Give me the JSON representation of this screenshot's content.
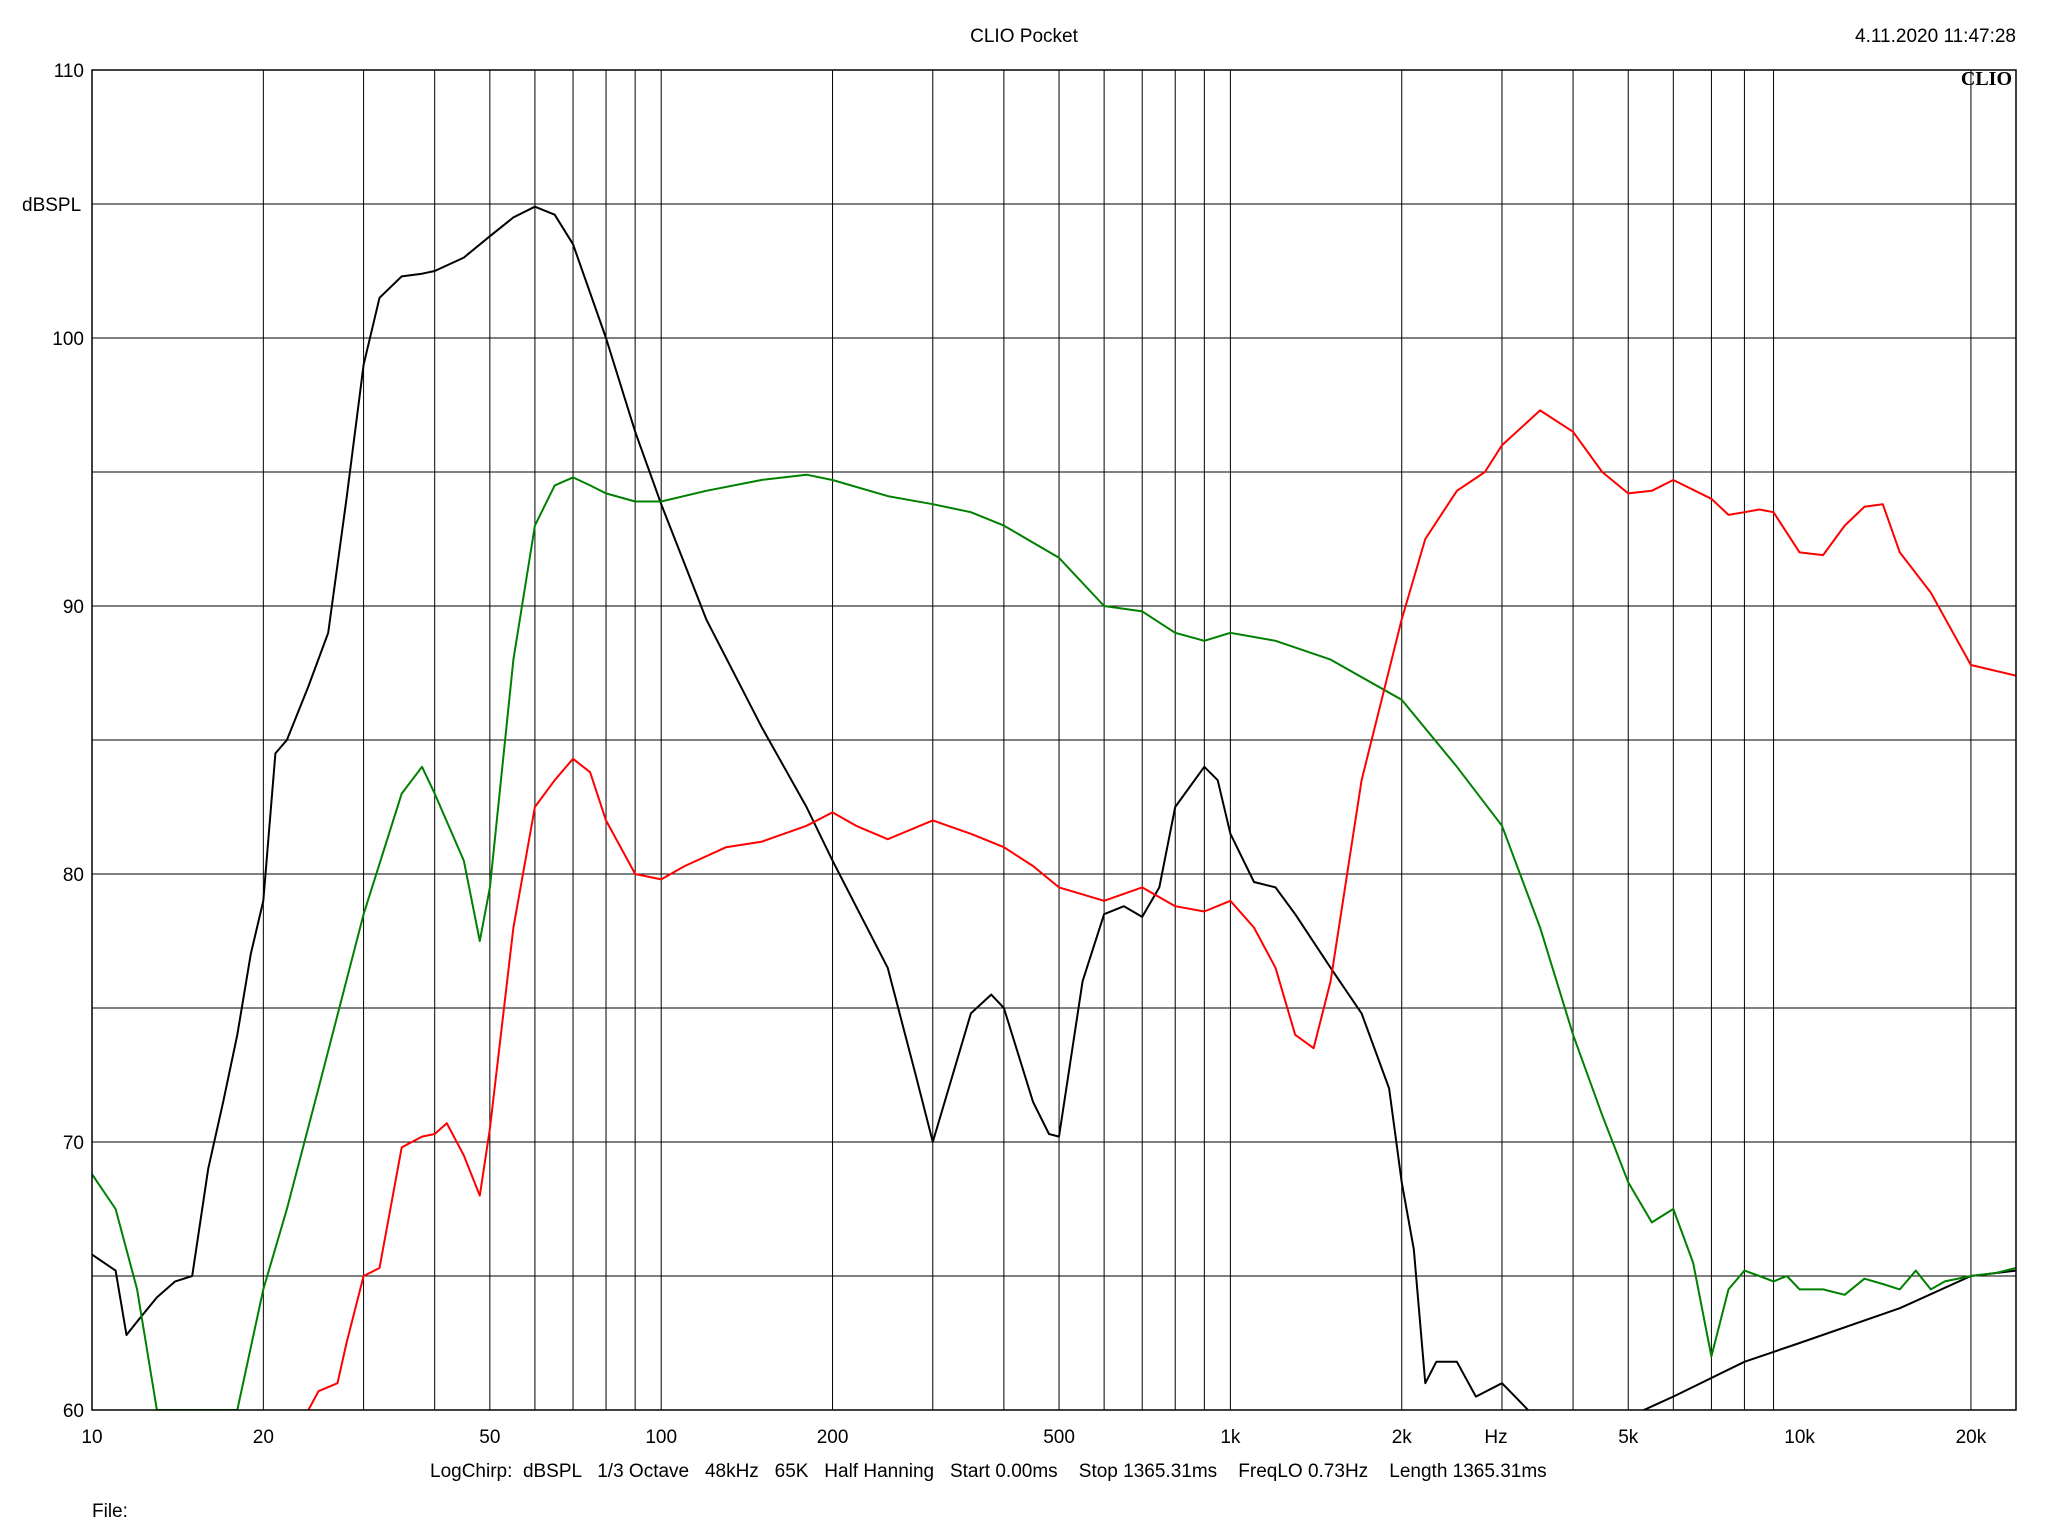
{
  "header": {
    "title": "CLIO Pocket",
    "timestamp": "4.11.2020 11:47:28",
    "logo": "CLIO"
  },
  "footer": {
    "info": "LogChirp:  dBSPL   1/3 Octave   48kHz   65K   Half Hanning   Start 0.00ms    Stop 1365.31ms    FreqLO 0.73Hz    Length 1365.31ms",
    "file_label": "File:"
  },
  "chart_data": {
    "type": "line",
    "title": "CLIO Pocket",
    "xlabel": "Hz",
    "ylabel": "dBSPL",
    "xscale": "log",
    "xlim": [
      10,
      24000
    ],
    "ylim": [
      60,
      110
    ],
    "grid": true,
    "y_ticks": [
      60,
      70,
      80,
      90,
      100,
      110
    ],
    "y_tick_labels": [
      "60",
      "70",
      "80",
      "90",
      "100",
      "110"
    ],
    "x_ticks": [
      10,
      20,
      50,
      100,
      200,
      500,
      1000,
      2000,
      5000,
      10000,
      20000
    ],
    "x_tick_labels": [
      "10",
      "20",
      "50",
      "100",
      "200",
      "500",
      "1k",
      "2k",
      "5k",
      "10k",
      "20k"
    ],
    "series": [
      {
        "color": "#000000",
        "x": [
          10,
          11,
          11.5,
          12,
          13,
          14,
          15,
          16,
          17,
          18,
          19,
          20,
          21,
          22,
          24,
          26,
          28,
          30,
          32,
          35,
          38,
          40,
          45,
          50,
          55,
          60,
          65,
          70,
          80,
          90,
          100,
          120,
          150,
          180,
          200,
          250,
          280,
          300,
          350,
          380,
          400,
          450,
          480,
          500,
          550,
          600,
          650,
          700,
          750,
          800,
          900,
          950,
          1000,
          1100,
          1200,
          1300,
          1500,
          1700,
          1900,
          2000,
          2100,
          2200,
          2300,
          2500,
          2700,
          3000,
          3300,
          3500,
          3800,
          4000,
          4200,
          6000,
          8000,
          10000,
          15000,
          20000,
          24000
        ],
        "y": [
          65.8,
          65.2,
          62.8,
          63.3,
          64.2,
          64.8,
          65.0,
          69.0,
          71.5,
          74.0,
          77.0,
          79.0,
          84.5,
          85.0,
          87.0,
          89.0,
          94.0,
          99.0,
          101.5,
          102.3,
          102.4,
          102.5,
          103.0,
          103.8,
          104.5,
          104.9,
          104.6,
          103.5,
          100.0,
          96.5,
          93.8,
          89.5,
          85.5,
          82.5,
          80.5,
          76.5,
          72.5,
          70.0,
          74.8,
          75.5,
          75.0,
          71.5,
          70.3,
          70.2,
          76.0,
          78.5,
          78.8,
          78.4,
          79.5,
          82.5,
          84.0,
          83.5,
          81.5,
          79.7,
          79.5,
          78.5,
          76.5,
          74.8,
          72.0,
          68.5,
          66.0,
          61.0,
          61.8,
          61.8,
          60.5,
          61.0,
          60.1,
          59.5,
          59.8,
          59.5,
          59.0,
          60.5,
          61.8,
          62.5,
          63.8,
          65.0,
          65.2
        ]
      },
      {
        "color": "#008000",
        "x": [
          10,
          11,
          12,
          13,
          18,
          20,
          22,
          25,
          30,
          35,
          38,
          40,
          45,
          48,
          50,
          55,
          60,
          65,
          70,
          75,
          80,
          90,
          100,
          120,
          150,
          180,
          200,
          250,
          300,
          350,
          400,
          500,
          600,
          700,
          800,
          900,
          1000,
          1200,
          1500,
          2000,
          2500,
          3000,
          3500,
          4000,
          4500,
          5000,
          5500,
          6000,
          6500,
          7000,
          7500,
          8000,
          8500,
          9000,
          9500,
          10000,
          11000,
          12000,
          13000,
          14000,
          15000,
          16000,
          17000,
          18000,
          20000,
          22000,
          24000
        ],
        "y": [
          68.8,
          67.5,
          64.5,
          60.0,
          60.0,
          64.5,
          67.5,
          72.0,
          78.5,
          83.0,
          84.0,
          83.0,
          80.5,
          77.5,
          79.5,
          88.0,
          93.0,
          94.5,
          94.8,
          94.5,
          94.2,
          93.9,
          93.9,
          94.3,
          94.7,
          94.9,
          94.7,
          94.1,
          93.8,
          93.5,
          93.0,
          91.8,
          90.0,
          89.8,
          89.0,
          88.7,
          89.0,
          88.7,
          88.0,
          86.5,
          84.0,
          81.8,
          78.0,
          74.0,
          71.0,
          68.5,
          67.0,
          67.5,
          65.5,
          62.0,
          64.5,
          65.2,
          65.0,
          64.8,
          65.0,
          64.5,
          64.5,
          64.3,
          64.9,
          64.7,
          64.5,
          65.2,
          64.5,
          64.8,
          65.0,
          65.1,
          65.3
        ]
      },
      {
        "color": "#ff0000",
        "x": [
          24,
          25,
          27,
          28,
          30,
          32,
          35,
          38,
          40,
          42,
          45,
          48,
          50,
          55,
          60,
          65,
          70,
          75,
          80,
          90,
          100,
          110,
          130,
          150,
          180,
          200,
          220,
          250,
          300,
          350,
          400,
          450,
          500,
          600,
          700,
          800,
          900,
          1000,
          1100,
          1200,
          1300,
          1400,
          1500,
          1700,
          2000,
          2200,
          2500,
          2800,
          3000,
          3500,
          4000,
          4500,
          5000,
          5500,
          6000,
          7000,
          7500,
          8000,
          8500,
          9000,
          10000,
          11000,
          12000,
          13000,
          14000,
          15000,
          17000,
          20000,
          24000
        ],
        "y": [
          60.0,
          60.7,
          61.0,
          62.5,
          65.0,
          65.3,
          69.8,
          70.2,
          70.3,
          70.7,
          69.5,
          68.0,
          70.5,
          78.0,
          82.5,
          83.5,
          84.3,
          83.8,
          82.0,
          80.0,
          79.8,
          80.3,
          81.0,
          81.2,
          81.8,
          82.3,
          81.8,
          81.3,
          82.0,
          81.5,
          81.0,
          80.3,
          79.5,
          79.0,
          79.5,
          78.8,
          78.6,
          79.0,
          78.0,
          76.5,
          74.0,
          73.5,
          76.0,
          83.5,
          89.5,
          92.5,
          94.3,
          95.0,
          96.0,
          97.3,
          96.5,
          95.0,
          94.2,
          94.3,
          94.7,
          94.0,
          93.4,
          93.5,
          93.6,
          93.5,
          92.0,
          91.9,
          93.0,
          93.7,
          93.8,
          92.0,
          90.5,
          87.8,
          87.4
        ]
      }
    ]
  }
}
